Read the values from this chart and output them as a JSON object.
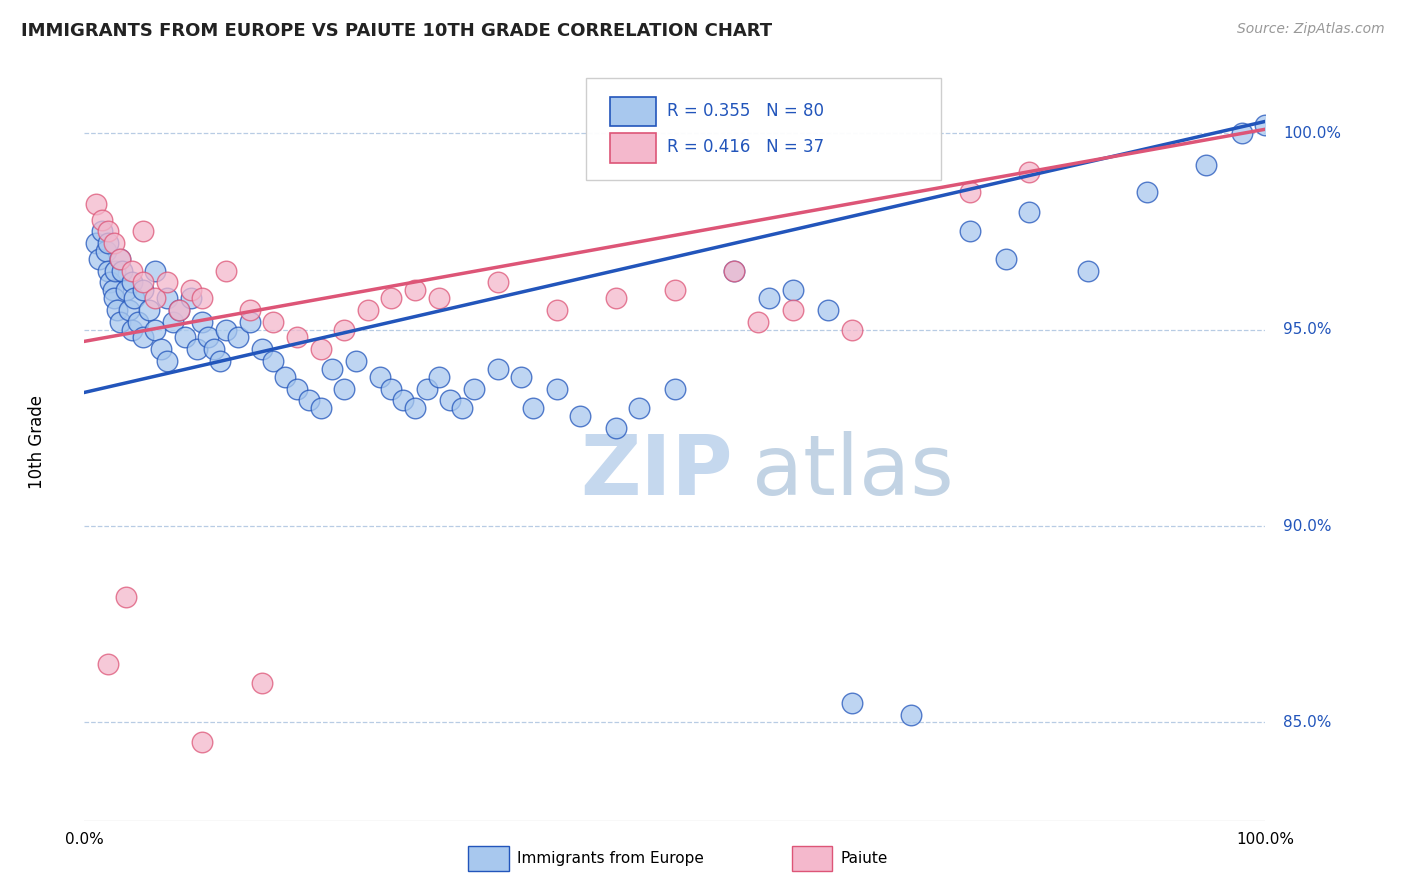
{
  "title": "IMMIGRANTS FROM EUROPE VS PAIUTE 10TH GRADE CORRELATION CHART",
  "source": "Source: ZipAtlas.com",
  "ylabel": "10th Grade",
  "y_ticks": [
    85.0,
    90.0,
    95.0,
    100.0
  ],
  "xlim": [
    0.0,
    100.0
  ],
  "ylim": [
    82.5,
    101.8
  ],
  "blue_r": 0.355,
  "blue_n": 80,
  "pink_r": 0.416,
  "pink_n": 37,
  "blue_color": "#a8c8ee",
  "pink_color": "#f4b8cc",
  "blue_line_color": "#2255bb",
  "pink_line_color": "#dd5577",
  "legend_label_blue": "Immigrants from Europe",
  "legend_label_pink": "Paiute",
  "blue_line": [
    0.0,
    93.4,
    100.0,
    100.3
  ],
  "pink_line": [
    0.0,
    94.7,
    100.0,
    100.1
  ],
  "blue_points": [
    [
      1.0,
      97.2
    ],
    [
      1.2,
      96.8
    ],
    [
      1.5,
      97.5
    ],
    [
      1.8,
      97.0
    ],
    [
      2.0,
      97.2
    ],
    [
      2.0,
      96.5
    ],
    [
      2.2,
      96.2
    ],
    [
      2.4,
      96.0
    ],
    [
      2.5,
      95.8
    ],
    [
      2.6,
      96.5
    ],
    [
      2.8,
      95.5
    ],
    [
      3.0,
      95.2
    ],
    [
      3.0,
      96.8
    ],
    [
      3.2,
      96.5
    ],
    [
      3.5,
      96.0
    ],
    [
      3.8,
      95.5
    ],
    [
      4.0,
      95.0
    ],
    [
      4.0,
      96.2
    ],
    [
      4.2,
      95.8
    ],
    [
      4.5,
      95.2
    ],
    [
      5.0,
      94.8
    ],
    [
      5.0,
      96.0
    ],
    [
      5.5,
      95.5
    ],
    [
      6.0,
      95.0
    ],
    [
      6.0,
      96.5
    ],
    [
      6.5,
      94.5
    ],
    [
      7.0,
      94.2
    ],
    [
      7.0,
      95.8
    ],
    [
      7.5,
      95.2
    ],
    [
      8.0,
      95.5
    ],
    [
      8.5,
      94.8
    ],
    [
      9.0,
      95.8
    ],
    [
      9.5,
      94.5
    ],
    [
      10.0,
      95.2
    ],
    [
      10.5,
      94.8
    ],
    [
      11.0,
      94.5
    ],
    [
      11.5,
      94.2
    ],
    [
      12.0,
      95.0
    ],
    [
      13.0,
      94.8
    ],
    [
      14.0,
      95.2
    ],
    [
      15.0,
      94.5
    ],
    [
      16.0,
      94.2
    ],
    [
      17.0,
      93.8
    ],
    [
      18.0,
      93.5
    ],
    [
      19.0,
      93.2
    ],
    [
      20.0,
      93.0
    ],
    [
      21.0,
      94.0
    ],
    [
      22.0,
      93.5
    ],
    [
      23.0,
      94.2
    ],
    [
      25.0,
      93.8
    ],
    [
      26.0,
      93.5
    ],
    [
      27.0,
      93.2
    ],
    [
      28.0,
      93.0
    ],
    [
      29.0,
      93.5
    ],
    [
      30.0,
      93.8
    ],
    [
      31.0,
      93.2
    ],
    [
      32.0,
      93.0
    ],
    [
      33.0,
      93.5
    ],
    [
      35.0,
      94.0
    ],
    [
      37.0,
      93.8
    ],
    [
      38.0,
      93.0
    ],
    [
      40.0,
      93.5
    ],
    [
      42.0,
      92.8
    ],
    [
      45.0,
      92.5
    ],
    [
      47.0,
      93.0
    ],
    [
      50.0,
      93.5
    ],
    [
      55.0,
      96.5
    ],
    [
      58.0,
      95.8
    ],
    [
      60.0,
      96.0
    ],
    [
      63.0,
      95.5
    ],
    [
      65.0,
      85.5
    ],
    [
      70.0,
      85.2
    ],
    [
      75.0,
      97.5
    ],
    [
      78.0,
      96.8
    ],
    [
      80.0,
      98.0
    ],
    [
      85.0,
      96.5
    ],
    [
      90.0,
      98.5
    ],
    [
      95.0,
      99.2
    ],
    [
      98.0,
      100.0
    ],
    [
      100.0,
      100.2
    ]
  ],
  "pink_points": [
    [
      1.0,
      98.2
    ],
    [
      1.5,
      97.8
    ],
    [
      2.0,
      97.5
    ],
    [
      2.5,
      97.2
    ],
    [
      3.0,
      96.8
    ],
    [
      4.0,
      96.5
    ],
    [
      5.0,
      96.2
    ],
    [
      5.0,
      97.5
    ],
    [
      6.0,
      95.8
    ],
    [
      7.0,
      96.2
    ],
    [
      8.0,
      95.5
    ],
    [
      9.0,
      96.0
    ],
    [
      10.0,
      95.8
    ],
    [
      12.0,
      96.5
    ],
    [
      14.0,
      95.5
    ],
    [
      16.0,
      95.2
    ],
    [
      18.0,
      94.8
    ],
    [
      20.0,
      94.5
    ],
    [
      22.0,
      95.0
    ],
    [
      24.0,
      95.5
    ],
    [
      26.0,
      95.8
    ],
    [
      28.0,
      96.0
    ],
    [
      30.0,
      95.8
    ],
    [
      35.0,
      96.2
    ],
    [
      40.0,
      95.5
    ],
    [
      45.0,
      95.8
    ],
    [
      50.0,
      96.0
    ],
    [
      55.0,
      96.5
    ],
    [
      57.0,
      95.2
    ],
    [
      60.0,
      95.5
    ],
    [
      65.0,
      95.0
    ],
    [
      75.0,
      98.5
    ],
    [
      80.0,
      99.0
    ],
    [
      2.0,
      86.5
    ],
    [
      3.5,
      88.2
    ],
    [
      10.0,
      84.5
    ],
    [
      15.0,
      86.0
    ]
  ]
}
